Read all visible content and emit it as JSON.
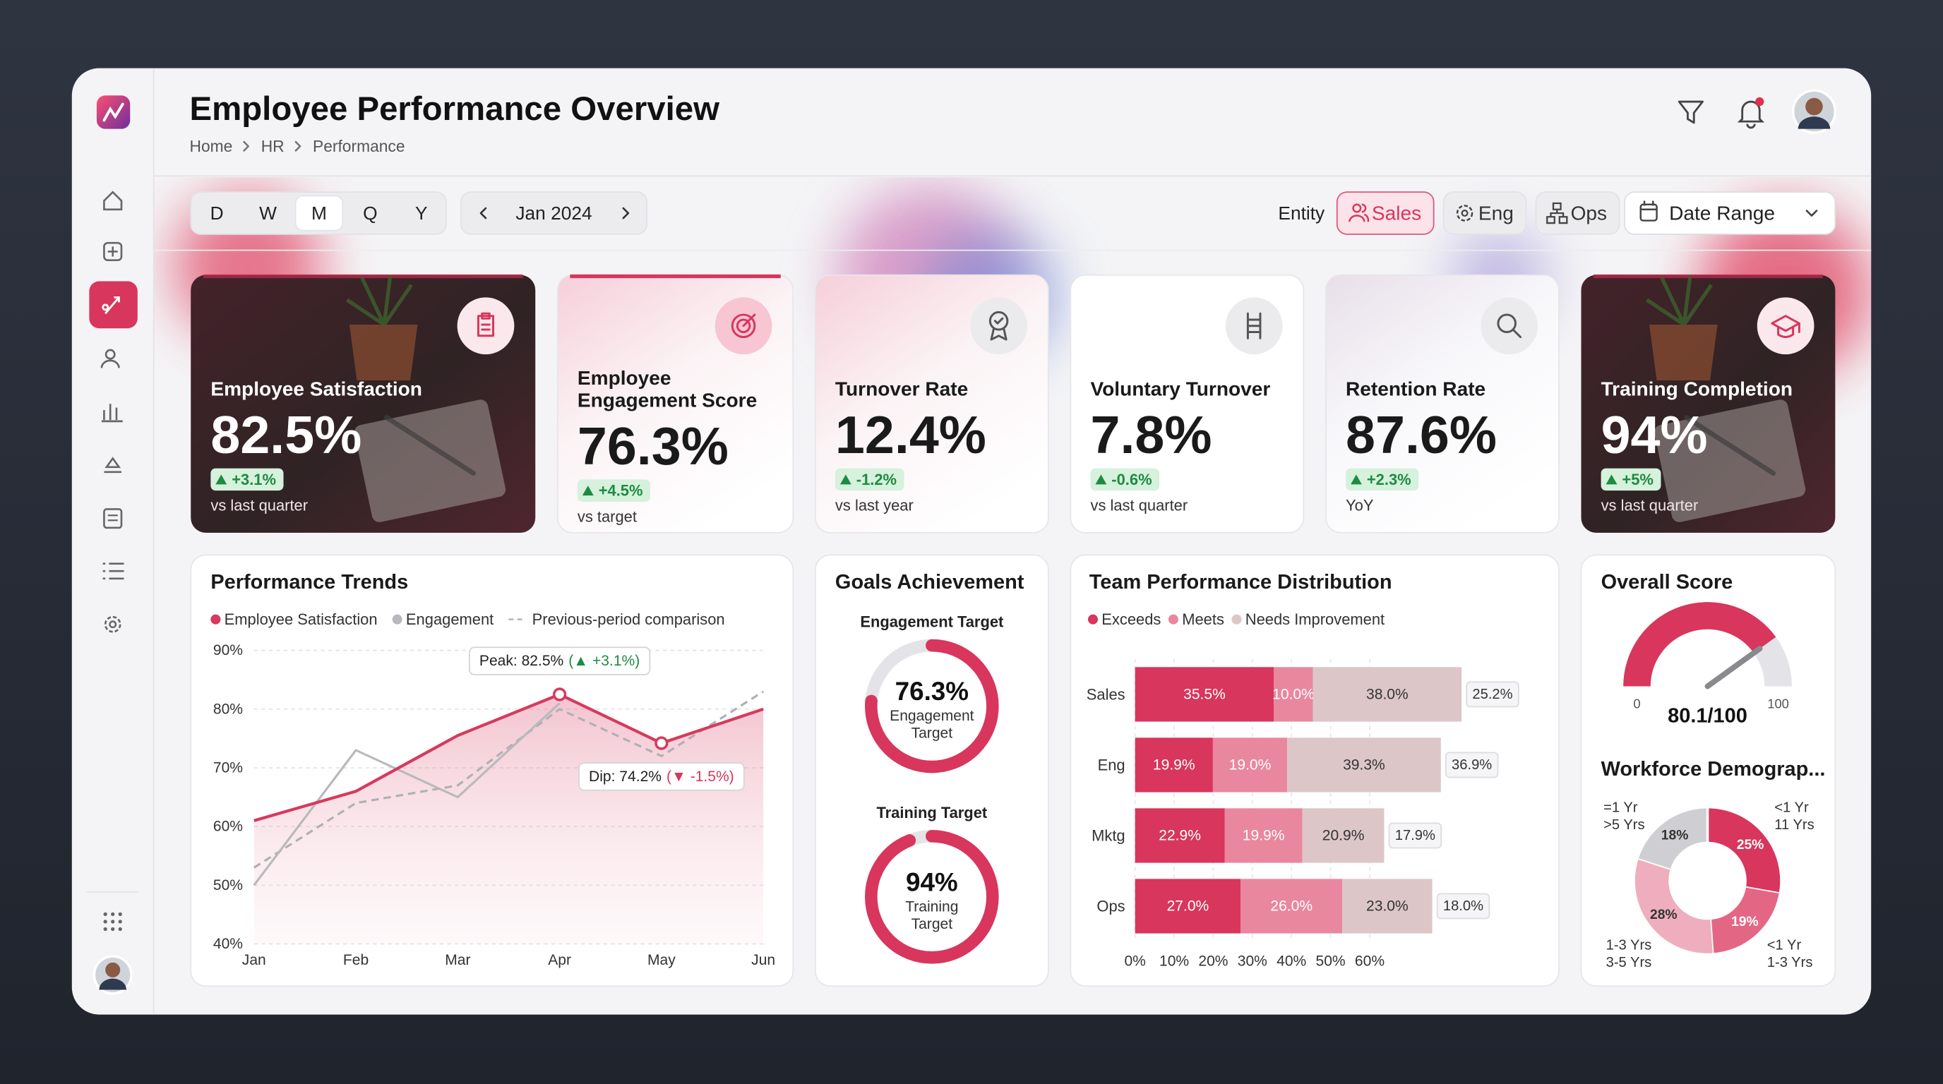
{
  "header": {
    "title": "Employee Performance Overview",
    "breadcrumb": [
      "Home",
      "HR",
      "Performance"
    ]
  },
  "toolbar": {
    "periods": [
      "D",
      "W",
      "M",
      "Q",
      "Y"
    ],
    "active_period": "M",
    "month": "Jan 2024",
    "entity_label": "Entity",
    "entities": [
      "Sales",
      "Eng",
      "Ops"
    ],
    "active_entity": "Sales",
    "date_range": "Date Range"
  },
  "kpis": [
    {
      "title": [
        "Employee Satisfaction"
      ],
      "value": "82.5%",
      "change": "+3.1%",
      "note": "vs last quarter"
    },
    {
      "title": [
        "Employee",
        "Engagement Score"
      ],
      "value": "76.3%",
      "change": "+4.5%",
      "note": "vs target"
    },
    {
      "title": [
        "Turnover Rate"
      ],
      "value": "12.4%",
      "change": "-1.2%",
      "note": "vs last year"
    },
    {
      "title": [
        "Voluntary Turnover"
      ],
      "value": "7.8%",
      "change": "-0.6%",
      "note": "vs last quarter"
    },
    {
      "title": [
        "Retention Rate"
      ],
      "value": "87.6%",
      "change": "+2.3%",
      "note": "YoY"
    },
    {
      "title": [
        "Training Completion"
      ],
      "value": "94%",
      "change": "+5%",
      "note": "vs last quarter"
    }
  ],
  "chart_data": [
    {
      "type": "line",
      "title": "Performance Trends",
      "categories": [
        "Jan",
        "Feb",
        "Mar",
        "Apr",
        "May",
        "Jun"
      ],
      "series": [
        {
          "name": "Employee Satisfaction",
          "color": "#d63a5e",
          "values": [
            61,
            66,
            75.5,
            82.5,
            74.2,
            80
          ]
        },
        {
          "name": "Engagement",
          "color": "#b9b9bd",
          "values": [
            50,
            73,
            65,
            81,
            null,
            null
          ]
        },
        {
          "name": "Previous-period comparison",
          "color": "#b0b0b4",
          "dashed": true,
          "values": [
            53,
            64,
            67,
            80,
            72,
            83
          ]
        }
      ],
      "ylim": [
        40,
        90
      ],
      "yticks": [
        {
          "value": 40,
          "label": "40%"
        },
        {
          "value": 50,
          "label": "50%"
        },
        {
          "value": 60,
          "label": "60%"
        },
        {
          "value": 70,
          "label": "70%"
        },
        {
          "value": 80,
          "label": "80%"
        },
        {
          "value": 90,
          "label": "90%"
        }
      ],
      "grid": true,
      "annotations": [
        {
          "x": "Apr",
          "text": "Peak: 82.5%",
          "change": "(▲ +3.1%)",
          "change_color": "#1f8a43"
        },
        {
          "x": "May",
          "text": "Dip: 74.2%",
          "change": "(▼ -1.5%)",
          "change_color": "#d8365c"
        }
      ]
    },
    {
      "type": "progress-donut",
      "title": "Goals Achievement",
      "ylim": [
        0,
        100
      ],
      "color": "#d8365c",
      "items": [
        {
          "title": "Engagement Target",
          "value": 76.3,
          "value_label": "76.3%",
          "label": [
            "Engagement",
            "Target"
          ]
        },
        {
          "title": "Training Target",
          "value": 94,
          "value_label": "94%",
          "label": [
            "Training",
            "Target"
          ]
        }
      ]
    },
    {
      "type": "stacked-bar-horizontal",
      "title": "Team Performance Distribution",
      "categories": [
        "Sales",
        "Eng",
        "Mktg",
        "Ops"
      ],
      "series": [
        {
          "name": "Exceeds",
          "color": "#d8365c",
          "values": [
            35.5,
            19.9,
            22.9,
            27.0
          ],
          "value_labels": [
            "35.5%",
            "19.9%",
            "22.9%",
            "27.0%"
          ]
        },
        {
          "name": "Meets",
          "color": "#e9879e",
          "values": [
            10.0,
            19.0,
            19.9,
            26.0
          ],
          "value_labels": [
            "10.0%",
            "19.0%",
            "19.9%",
            "26.0%"
          ]
        },
        {
          "name": "Needs Improvement",
          "color": "#dcc6c8",
          "values": [
            38.0,
            39.3,
            20.9,
            23.0
          ],
          "value_labels": [
            "38.0%",
            "39.3%",
            "20.9%",
            "23.0%"
          ]
        }
      ],
      "tags": {
        "values": [
          25.2,
          36.9,
          17.9,
          18.0
        ],
        "value_labels": [
          "25.2%",
          "36.9%",
          "17.9%",
          "18.0%"
        ]
      },
      "xlim": [
        0,
        90
      ],
      "xticks": [
        {
          "value": 0,
          "label": "0%"
        },
        {
          "value": 10,
          "label": "10%"
        },
        {
          "value": 20,
          "label": "20%"
        },
        {
          "value": 30,
          "label": "30%"
        },
        {
          "value": 40,
          "label": "40%"
        },
        {
          "value": 50,
          "label": "50%"
        },
        {
          "value": 60,
          "label": "60%"
        }
      ],
      "grid": true
    },
    {
      "type": "gauge",
      "title": "Overall Score",
      "value": 80.1,
      "value_label": "80.1/100",
      "ylim": [
        0,
        100
      ],
      "yticks": [
        0,
        100
      ],
      "color": "#d8365c"
    },
    {
      "type": "donut",
      "title": "Workforce Demograp...",
      "categories": [
        [
          "<1 Yr",
          "11 Yrs"
        ],
        [
          "<1 Yr",
          "1-3 Yrs"
        ],
        [
          "1-3 Yrs",
          "3-5 Yrs"
        ],
        [
          "=1 Yr",
          ">5 Yrs"
        ]
      ],
      "values": [
        25,
        19,
        28,
        18
      ],
      "value_labels": [
        "25%",
        "19%",
        "28%",
        "18%"
      ],
      "colors": [
        "#d8365c",
        "#e36785",
        "#eeaebd",
        "#cfcfd3"
      ]
    }
  ]
}
